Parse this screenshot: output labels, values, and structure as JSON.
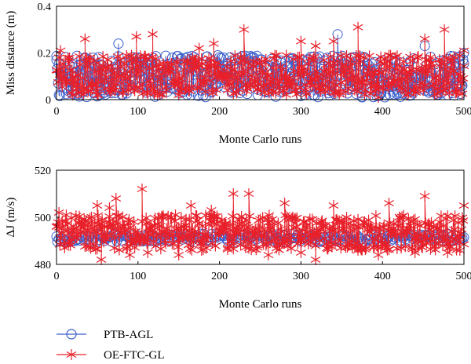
{
  "chart_data": [
    {
      "type": "scatter",
      "xlabel": "Monte Carlo runs",
      "ylabel": "Miss distance (m)",
      "xlim": [
        0,
        500
      ],
      "ylim": [
        0,
        0.4
      ],
      "xticks": [
        0,
        100,
        200,
        300,
        400,
        500
      ],
      "xtick_labels": [
        "0",
        "100",
        "200",
        "300",
        "400",
        "500"
      ],
      "yticks": [
        0,
        0.2,
        0.4
      ],
      "ytick_labels": [
        "0",
        "0.2",
        "0.4"
      ],
      "grid": false,
      "n_runs": 500,
      "series": [
        {
          "name": "PTB-AGL",
          "marker": "circle",
          "color": "#3a5fcd",
          "points": [
            [
              0,
              0.17
            ],
            [
              3,
              0.02
            ],
            [
              12,
              0.05
            ],
            [
              25,
              0.02
            ],
            [
              40,
              0.04
            ],
            [
              55,
              0.15
            ],
            [
              68,
              0.08
            ],
            [
              76,
              0.24
            ],
            [
              90,
              0.06
            ],
            [
              110,
              0.03
            ],
            [
              125,
              0.1
            ],
            [
              140,
              0.05
            ],
            [
              165,
              0.02
            ],
            [
              180,
              0.05
            ],
            [
              198,
              0.19
            ],
            [
              215,
              0.03
            ],
            [
              230,
              0.09
            ],
            [
              247,
              0.02
            ],
            [
              262,
              0.07
            ],
            [
              280,
              0.04
            ],
            [
              300,
              0.12
            ],
            [
              315,
              0.02
            ],
            [
              330,
              0.08
            ],
            [
              345,
              0.28
            ],
            [
              360,
              0.05
            ],
            [
              375,
              0.01
            ],
            [
              390,
              0.16
            ],
            [
              403,
              0.01
            ],
            [
              420,
              0.06
            ],
            [
              438,
              0.03
            ],
            [
              452,
              0.23
            ],
            [
              465,
              0.05
            ],
            [
              480,
              0.02
            ],
            [
              492,
              0.06
            ],
            [
              500,
              0.2
            ]
          ]
        },
        {
          "name": "OE-FTC-GL",
          "marker": "asterisk",
          "color": "#e8202a",
          "points": [
            [
              5,
              0.21
            ],
            [
              20,
              0.02
            ],
            [
              35,
              0.26
            ],
            [
              50,
              0.02
            ],
            [
              72,
              0.04
            ],
            [
              98,
              0.27
            ],
            [
              118,
              0.28
            ],
            [
              150,
              0.02
            ],
            [
              175,
              0.22
            ],
            [
              193,
              0.24
            ],
            [
              210,
              0.04
            ],
            [
              230,
              0.3
            ],
            [
              255,
              0.03
            ],
            [
              282,
              0.19
            ],
            [
              300,
              0.25
            ],
            [
              318,
              0.23
            ],
            [
              340,
              0.25
            ],
            [
              370,
              0.31
            ],
            [
              395,
              0.01
            ],
            [
              408,
              0.19
            ],
            [
              430,
              0.02
            ],
            [
              452,
              0.26
            ],
            [
              476,
              0.3
            ],
            [
              490,
              0.03
            ],
            [
              500,
              0.21
            ]
          ]
        }
      ]
    },
    {
      "type": "scatter",
      "xlabel": "Monte Carlo runs",
      "ylabel": "ΔJ (m/s)",
      "xlim": [
        0,
        500
      ],
      "ylim": [
        480,
        520
      ],
      "xticks": [
        0,
        100,
        200,
        300,
        400,
        500
      ],
      "xtick_labels": [
        "0",
        "100",
        "200",
        "300",
        "400",
        "500"
      ],
      "yticks": [
        480,
        500,
        520
      ],
      "ytick_labels": [
        "480",
        "500",
        "520"
      ],
      "grid": false,
      "n_runs": 500,
      "series": [
        {
          "name": "PTB-AGL",
          "marker": "circle",
          "color": "#3a5fcd",
          "points": [
            [
              0,
              491
            ],
            [
              60,
              491
            ],
            [
              130,
              490
            ],
            [
              200,
              491
            ],
            [
              260,
              490
            ],
            [
              330,
              491
            ],
            [
              400,
              491
            ],
            [
              470,
              490
            ],
            [
              500,
              491
            ]
          ]
        },
        {
          "name": "OE-FTC-GL",
          "marker": "asterisk",
          "color": "#e8202a",
          "points": [
            [
              3,
              502
            ],
            [
              15,
              489
            ],
            [
              30,
              494
            ],
            [
              50,
              505
            ],
            [
              55,
              482
            ],
            [
              65,
              504
            ],
            [
              73,
              508
            ],
            [
              90,
              484
            ],
            [
              105,
              512
            ],
            [
              112,
              485
            ],
            [
              130,
              500
            ],
            [
              150,
              484
            ],
            [
              165,
              505
            ],
            [
              178,
              486
            ],
            [
              190,
              503
            ],
            [
              210,
              487
            ],
            [
              217,
              510
            ],
            [
              236,
              510
            ],
            [
              260,
              484
            ],
            [
              280,
              506
            ],
            [
              300,
              485
            ],
            [
              318,
              482
            ],
            [
              340,
              505
            ],
            [
              370,
              486
            ],
            [
              395,
              484
            ],
            [
              408,
              506
            ],
            [
              440,
              485
            ],
            [
              452,
              509
            ],
            [
              480,
              485
            ],
            [
              495,
              486
            ],
            [
              500,
              505
            ]
          ]
        }
      ]
    }
  ],
  "legend": {
    "placement": "bottom-left",
    "entries": [
      {
        "label": "PTB-AGL",
        "marker": "circle",
        "color": "#3a5fcd"
      },
      {
        "label": "OE-FTC-GL",
        "marker": "asterisk",
        "color": "#e8202a"
      }
    ]
  }
}
